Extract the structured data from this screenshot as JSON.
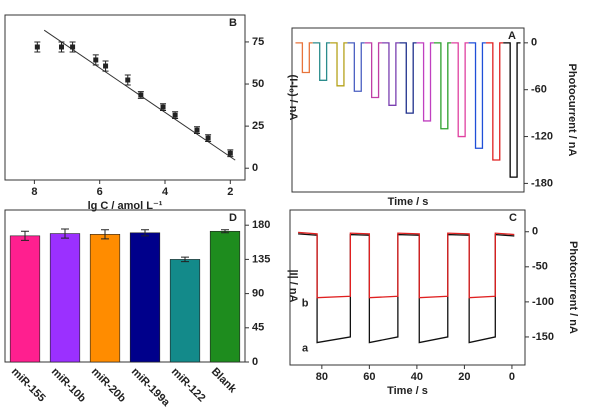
{
  "chart_data": [
    {
      "type": "line",
      "label": "A",
      "ylabel": "Photocurrent / nA",
      "xlabel": "Time / s",
      "xlim": [
        -10,
        660
      ],
      "ylim": [
        -191,
        19
      ],
      "yticks": [
        0,
        -60,
        -120,
        -180
      ],
      "series": [
        {
          "color": "#e8743b",
          "x": [
            0,
            20,
            20,
            40,
            40,
            50
          ],
          "values": [
            0,
            0,
            -38,
            -38,
            0,
            0
          ]
        },
        {
          "color": "#2b8c8c",
          "x": [
            50,
            70,
            70,
            90,
            90,
            100
          ],
          "values": [
            0,
            0,
            -48,
            -48,
            0,
            0
          ]
        },
        {
          "color": "#b5a21a",
          "x": [
            100,
            120,
            120,
            140,
            140,
            150
          ],
          "values": [
            0,
            0,
            -55,
            -55,
            0,
            0
          ]
        },
        {
          "color": "#4a5fc1",
          "x": [
            150,
            170,
            170,
            190,
            190,
            200
          ],
          "values": [
            0,
            0,
            -62,
            -62,
            0,
            0
          ]
        },
        {
          "color": "#c03fa5",
          "x": [
            200,
            220,
            220,
            240,
            240,
            250
          ],
          "values": [
            0,
            0,
            -70,
            -70,
            0,
            0
          ]
        },
        {
          "color": "#7a3fb0",
          "x": [
            250,
            270,
            270,
            290,
            290,
            300
          ],
          "values": [
            0,
            0,
            -80,
            -80,
            0,
            0
          ]
        },
        {
          "color": "#1e2f8c",
          "x": [
            300,
            320,
            320,
            340,
            340,
            350
          ],
          "values": [
            0,
            0,
            -90,
            -90,
            0,
            0
          ]
        },
        {
          "color": "#c040c0",
          "x": [
            350,
            370,
            370,
            390,
            390,
            400
          ],
          "values": [
            0,
            0,
            -100,
            -100,
            0,
            0
          ]
        },
        {
          "color": "#2ca02c",
          "x": [
            400,
            420,
            420,
            440,
            440,
            450
          ],
          "values": [
            0,
            0,
            -110,
            -110,
            0,
            0
          ]
        },
        {
          "color": "#e040a0",
          "x": [
            450,
            470,
            470,
            490,
            490,
            500
          ],
          "values": [
            0,
            0,
            -120,
            -120,
            0,
            0
          ]
        },
        {
          "color": "#1f4fd8",
          "x": [
            500,
            520,
            520,
            540,
            540,
            550
          ],
          "values": [
            0,
            0,
            -135,
            -135,
            0,
            0
          ]
        },
        {
          "color": "#e02020",
          "x": [
            550,
            570,
            570,
            590,
            590,
            600
          ],
          "values": [
            0,
            0,
            -150,
            -150,
            0,
            0
          ]
        },
        {
          "color": "#000000",
          "x": [
            600,
            620,
            620,
            640,
            640,
            650
          ],
          "values": [
            0,
            0,
            -172,
            -172,
            0,
            0
          ]
        }
      ]
    },
    {
      "type": "scatter",
      "label": "B",
      "ylabel": "(I-I₀) / nA",
      "xlabel": "lg C / amol L⁻¹",
      "xlim": [
        8.9,
        1.55
      ],
      "xticks": [
        8,
        6,
        4,
        2
      ],
      "ylim": [
        -7,
        91
      ],
      "yticks": [
        0,
        25,
        50,
        75
      ],
      "color": "#222222",
      "x": [
        7.91,
        7.17,
        6.83,
        6.12,
        5.82,
        5.14,
        4.74,
        4.06,
        3.69,
        3.02,
        2.68,
        2.0
      ],
      "values": [
        72,
        72,
        72,
        64.3,
        60.7,
        52.4,
        43.5,
        36.3,
        31.5,
        22.6,
        17.9,
        8.9
      ],
      "errors": [
        3,
        3,
        3,
        3,
        3,
        3,
        2,
        2,
        2,
        2,
        2,
        2
      ],
      "fit": {
        "x": [
          7.7,
          1.85
        ],
        "values": [
          82,
          4.8
        ]
      }
    },
    {
      "type": "line",
      "label": "C",
      "ylabel": "Photocurrent / nA",
      "xlabel": "Time / s",
      "xlim": [
        93.4,
        -5.5
      ],
      "xticks": [
        80,
        60,
        40,
        20,
        0
      ],
      "ylim": [
        -190,
        31
      ],
      "yticks": [
        0,
        -50,
        -100,
        -150
      ],
      "series": [
        {
          "name": "a",
          "color": "#111111",
          "x": [
            90,
            82,
            82,
            68,
            68,
            60,
            60,
            48,
            48,
            39,
            39,
            27,
            27,
            18,
            18,
            7,
            7,
            -1
          ],
          "values": [
            -3,
            -5,
            -158,
            -150,
            -4,
            -5,
            -158,
            -150,
            -4,
            -5,
            -158,
            -150,
            -4,
            -5,
            -158,
            -150,
            -4,
            -6
          ]
        },
        {
          "name": "b",
          "color": "#e02020",
          "x": [
            90,
            82,
            82,
            68,
            68,
            60,
            60,
            48,
            48,
            39,
            39,
            27,
            27,
            18,
            18,
            7,
            7,
            -1
          ],
          "values": [
            -1,
            -3,
            -94,
            -92,
            -2,
            -3,
            -94,
            -92,
            -2,
            -3,
            -94,
            -92,
            -2,
            -3,
            -94,
            -92,
            -2,
            -4
          ]
        }
      ]
    },
    {
      "type": "bar",
      "label": "D",
      "ylabel": "|I| / nA",
      "ylim": [
        0,
        200
      ],
      "yticks": [
        0,
        45,
        90,
        135,
        180
      ],
      "categories": [
        "miR-155",
        "miR-10b",
        "miR-20b",
        "miR-199a",
        "miR-122",
        "Blank"
      ],
      "values": [
        166,
        169,
        168,
        170,
        135,
        172
      ],
      "errors": [
        6,
        6,
        6,
        4,
        3,
        2
      ],
      "colors": [
        "#ff1f8f",
        "#9b30ff",
        "#ff8c00",
        "#00008b",
        "#138a8a",
        "#1e8c1e"
      ]
    }
  ]
}
